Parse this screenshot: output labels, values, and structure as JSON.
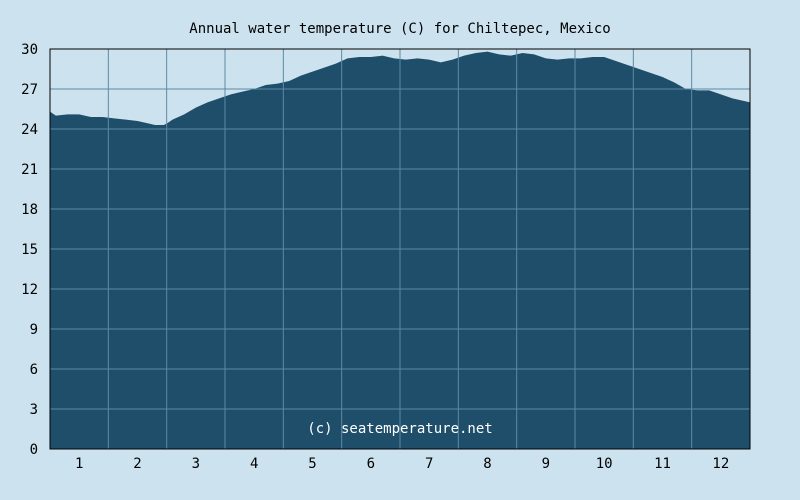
{
  "chart_data": {
    "type": "area",
    "title": "Annual water temperature (C) for Chiltepec, Mexico",
    "xlabel": "",
    "ylabel": "",
    "x_ticks": [
      "1",
      "2",
      "3",
      "4",
      "5",
      "6",
      "7",
      "8",
      "9",
      "10",
      "11",
      "12"
    ],
    "y_ticks": [
      "0",
      "3",
      "6",
      "9",
      "12",
      "15",
      "18",
      "21",
      "24",
      "27",
      "30"
    ],
    "xlim": [
      0.5,
      12.5
    ],
    "ylim": [
      0,
      30
    ],
    "grid": true,
    "watermark": "(c) seatemperature.net",
    "colors": {
      "background": "#cce3ef",
      "fill": "#1f4e6a",
      "grid": "#5a8aa6"
    },
    "series": [
      {
        "x": [
          0.5,
          0.6,
          0.8,
          1.0,
          1.2,
          1.4,
          1.6,
          1.8,
          2.0,
          2.2,
          2.3,
          2.45,
          2.5,
          2.6,
          2.8,
          3.0,
          3.2,
          3.4,
          3.6,
          3.8,
          4.0,
          4.2,
          4.4,
          4.6,
          4.8,
          5.0,
          5.2,
          5.4,
          5.6,
          5.8,
          6.0,
          6.2,
          6.4,
          6.6,
          6.8,
          7.0,
          7.2,
          7.4,
          7.6,
          7.8,
          8.0,
          8.2,
          8.4,
          8.6,
          8.8,
          9.0,
          9.2,
          9.4,
          9.6,
          9.8,
          10.0,
          10.2,
          10.4,
          10.6,
          10.8,
          11.0,
          11.2,
          11.4,
          11.6,
          11.8,
          12.0,
          12.2,
          12.4,
          12.5
        ],
        "values": [
          25.3,
          25.0,
          25.1,
          25.1,
          24.9,
          24.9,
          24.8,
          24.7,
          24.6,
          24.4,
          24.3,
          24.3,
          24.4,
          24.7,
          25.1,
          25.6,
          26.0,
          26.3,
          26.6,
          26.8,
          27.0,
          27.3,
          27.4,
          27.6,
          28.0,
          28.3,
          28.6,
          28.9,
          29.3,
          29.4,
          29.4,
          29.5,
          29.3,
          29.2,
          29.3,
          29.2,
          29.0,
          29.2,
          29.5,
          29.7,
          29.8,
          29.6,
          29.5,
          29.7,
          29.6,
          29.3,
          29.2,
          29.3,
          29.3,
          29.4,
          29.4,
          29.1,
          28.8,
          28.5,
          28.2,
          27.9,
          27.5,
          27.0,
          26.9,
          26.9,
          26.6,
          26.3,
          26.1,
          26.0
        ]
      }
    ]
  }
}
